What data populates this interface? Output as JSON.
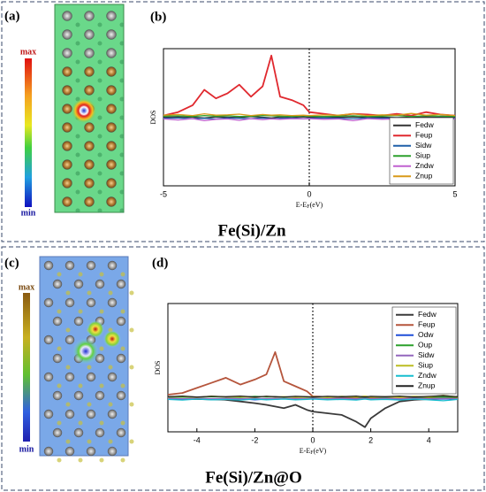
{
  "images": [
    {
      "label": "(a)",
      "colorbar_max": "max",
      "colorbar_min": "min",
      "caption": "Fe(Si)/Zn"
    },
    {
      "label": "(c)",
      "colorbar_max": "max",
      "colorbar_min": "min",
      "caption": "Fe(Si)/Zn@O"
    }
  ],
  "chart_data": [
    {
      "type": "line",
      "panel_label": "(b)",
      "ylabel": "DOS",
      "xlabel": {
        "text": "E-E",
        "sub": "F",
        "unit": "(eV)"
      },
      "xlim": [
        -5,
        5
      ],
      "xticks": [
        -5,
        0,
        5
      ],
      "ylim": [
        -2,
        2
      ],
      "reference_x": 0,
      "legend": "lower right",
      "x": [
        -5,
        -4.5,
        -4,
        -3.6,
        -3.2,
        -2.8,
        -2.4,
        -2,
        -1.6,
        -1.3,
        -1,
        -0.6,
        -0.2,
        0,
        0.5,
        1,
        1.5,
        2,
        2.5,
        3,
        3.5,
        4,
        4.5,
        5
      ],
      "series": [
        {
          "name": "Fedw",
          "color": "#333333",
          "values": [
            0,
            0.01,
            0,
            -0.02,
            0.01,
            0,
            -0.01,
            0.02,
            0,
            -0.02,
            0.01,
            0,
            0.01,
            0,
            -0.01,
            0,
            0.01,
            0,
            0,
            -0.01,
            0,
            0.01,
            0,
            0
          ]
        },
        {
          "name": "Feup",
          "color": "#e0282e",
          "values": [
            0.05,
            0.15,
            0.35,
            0.8,
            0.55,
            0.7,
            0.95,
            0.6,
            0.9,
            1.8,
            0.6,
            0.5,
            0.35,
            0.15,
            0.1,
            0.05,
            0.1,
            0.08,
            0.05,
            0.1,
            0.05,
            0.15,
            0.08,
            0.05
          ]
        },
        {
          "name": "Sidw",
          "color": "#1f5fa8",
          "values": [
            -0.03,
            -0.02,
            -0.04,
            -0.03,
            -0.05,
            -0.02,
            -0.03,
            -0.04,
            -0.02,
            -0.05,
            -0.03,
            -0.02,
            -0.04,
            -0.03,
            -0.02,
            -0.03,
            -0.04,
            -0.02,
            -0.03,
            -0.02,
            -0.04,
            -0.03,
            -0.02,
            -0.03
          ]
        },
        {
          "name": "Siup",
          "color": "#2ca02c",
          "values": [
            0.03,
            0.04,
            0.02,
            0.05,
            0.03,
            0.04,
            0.02,
            0.03,
            0.05,
            0.04,
            0.03,
            0.02,
            0.04,
            0.03,
            0.02,
            0.03,
            0.04,
            0.02,
            0.03,
            0.05,
            0.02,
            0.04,
            0.03,
            0.02
          ]
        },
        {
          "name": "Zndw",
          "color": "#c060d0",
          "values": [
            -0.05,
            -0.08,
            -0.04,
            -0.1,
            -0.06,
            -0.05,
            -0.09,
            -0.04,
            -0.07,
            -0.05,
            -0.06,
            -0.04,
            -0.05,
            -0.04,
            -0.06,
            -0.05,
            -0.1,
            -0.04,
            -0.06,
            -0.05,
            -0.12,
            -0.05,
            -0.08,
            -0.05
          ]
        },
        {
          "name": "Znup",
          "color": "#d99a1a",
          "values": [
            0.06,
            0.08,
            0.05,
            0.1,
            0.06,
            0.07,
            0.09,
            0.05,
            0.08,
            0.06,
            0.07,
            0.05,
            0.06,
            0.05,
            0.07,
            0.06,
            0.1,
            0.05,
            0.07,
            0.06,
            0.11,
            0.06,
            0.08,
            0.05
          ]
        }
      ]
    },
    {
      "type": "line",
      "panel_label": "(d)",
      "ylabel": "DOS",
      "xlabel": {
        "text": "E-E",
        "sub": "F",
        "unit": "(eV)"
      },
      "xlim": [
        -5,
        5
      ],
      "xticks": [
        -4,
        -2,
        0,
        2,
        4
      ],
      "ylim": [
        -1,
        2.8
      ],
      "reference_x": 0,
      "legend": "upper right",
      "x": [
        -5,
        -4.5,
        -4,
        -3.5,
        -3,
        -2.5,
        -2,
        -1.6,
        -1.3,
        -1,
        -0.6,
        -0.2,
        0,
        0.5,
        1,
        1.5,
        1.8,
        2,
        2.5,
        3,
        3.5,
        4,
        4.5,
        5
      ],
      "series": [
        {
          "name": "Fedw",
          "color": "#3a3a3a",
          "values": [
            -0.03,
            -0.03,
            -0.03,
            -0.04,
            -0.05,
            -0.1,
            -0.15,
            -0.2,
            -0.25,
            -0.3,
            -0.2,
            -0.35,
            -0.4,
            -0.45,
            -0.5,
            -0.7,
            -0.86,
            -0.6,
            -0.3,
            -0.1,
            -0.05,
            -0.03,
            -0.02,
            -0.02
          ]
        },
        {
          "name": "Feup",
          "color": "#b5553c",
          "values": [
            0.1,
            0.15,
            0.3,
            0.45,
            0.6,
            0.4,
            0.55,
            0.7,
            1.36,
            0.5,
            0.35,
            0.2,
            0.05,
            0.03,
            0.02,
            0.02,
            0.02,
            0.02,
            0.02,
            0.03,
            0.02,
            0.02,
            0.02,
            0.02
          ]
        },
        {
          "name": "Odw",
          "color": "#1f4fd8",
          "values": [
            -0.02,
            -0.03,
            -0.02,
            -0.04,
            -0.03,
            -0.02,
            -0.05,
            -0.03,
            -0.04,
            -0.02,
            -0.03,
            -0.02,
            -0.03,
            -0.02,
            -0.04,
            -0.03,
            -0.02,
            -0.03,
            -0.02,
            -0.04,
            -0.03,
            -0.02,
            -0.03,
            -0.02
          ]
        },
        {
          "name": "Oup",
          "color": "#2ca02c",
          "values": [
            0.02,
            0.03,
            0.02,
            0.04,
            0.03,
            0.02,
            0.05,
            0.03,
            0.04,
            0.02,
            0.03,
            0.02,
            0.03,
            0.02,
            0.04,
            0.03,
            0.02,
            0.03,
            0.02,
            0.04,
            0.03,
            0.02,
            0.03,
            0.02
          ]
        },
        {
          "name": "Sidw",
          "color": "#9467bd",
          "values": [
            -0.01,
            -0.02,
            -0.01,
            -0.02,
            -0.01,
            -0.02,
            -0.01,
            -0.02,
            -0.01,
            -0.02,
            -0.01,
            -0.02,
            -0.01,
            -0.02,
            -0.01,
            -0.02,
            -0.01,
            -0.02,
            -0.01,
            -0.02,
            -0.01,
            -0.02,
            -0.01,
            -0.02
          ]
        },
        {
          "name": "Siup",
          "color": "#bcbd22",
          "values": [
            0.03,
            0.05,
            0.02,
            0.06,
            0.03,
            0.04,
            0.02,
            0.05,
            0.03,
            0.04,
            0.02,
            0.03,
            0.04,
            0.02,
            0.05,
            0.03,
            0.06,
            0.03,
            0.04,
            0.02,
            0.05,
            0.03,
            0.08,
            0.03
          ]
        },
        {
          "name": "Zndw",
          "color": "#17becf",
          "values": [
            -0.04,
            -0.06,
            -0.03,
            -0.05,
            -0.04,
            -0.06,
            -0.03,
            -0.05,
            -0.04,
            -0.03,
            -0.05,
            -0.04,
            -0.03,
            -0.05,
            -0.04,
            -0.06,
            -0.03,
            -0.05,
            -0.04,
            -0.06,
            -0.03,
            -0.05,
            -0.08,
            -0.04
          ]
        },
        {
          "name": "Znup",
          "color": "#222222",
          "values": [
            0.04,
            0.06,
            0.03,
            0.05,
            0.04,
            0.06,
            0.03,
            0.05,
            0.04,
            0.03,
            0.05,
            0.04,
            0.03,
            0.05,
            0.04,
            0.06,
            0.03,
            0.05,
            0.04,
            0.06,
            0.03,
            0.05,
            0.07,
            0.04
          ]
        }
      ]
    }
  ]
}
